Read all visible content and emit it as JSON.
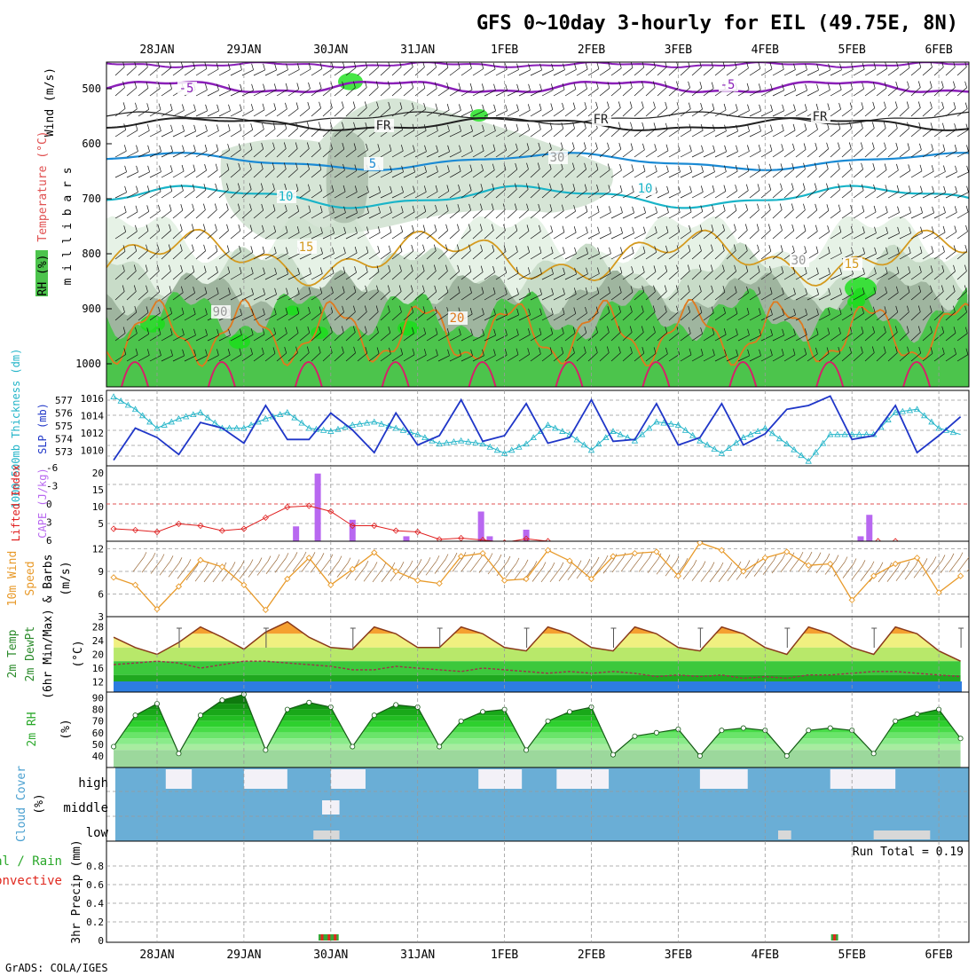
{
  "title": "GFS 0~10day 3-hourly for EIL (49.75E, 8N)",
  "credit": "GrADS: COLA/IGES",
  "dates": [
    "28JAN",
    "29JAN",
    "30JAN",
    "31JAN",
    "1FEB",
    "2FEB",
    "3FEB",
    "4FEB",
    "5FEB",
    "6FEB"
  ],
  "colors": {
    "rh_light": "#e6f2e6",
    "rh_mid": "#c8dcc8",
    "rh_dark": "#9fb59f",
    "rh_green": "#4cc44c",
    "rh_bright": "#18e018",
    "sat": "#000000",
    "temp_m5": "#8a1fb8",
    "temp_fr": "#222222",
    "temp_5": "#1a8ad4",
    "temp_10": "#19b4c8",
    "temp_15": "#d49a1e",
    "temp_20": "#e07a1e",
    "temp_25": "#d81e6a",
    "slp": "#1f36c8",
    "thick": "#22b4c8",
    "cape": "#b868f0",
    "li": "#e02020",
    "wind": "#e89a2a",
    "temp_orange": "#f5a030",
    "temp_yellow": "#f0f080",
    "temp_lgreen": "#b8e86a",
    "temp_green": "#3cc83c",
    "temp_dgreen": "#1fa81f",
    "temp_blue": "#2d7de0",
    "cloud": "#6aaed6",
    "cloud_clear": "#f3f1f7",
    "precip_total": "#38a838",
    "precip_conv": "#e0281e"
  },
  "panels": {
    "upper": {
      "ylabel": "m i l l i b a r s",
      "legend_wind": "Wind (m/s)",
      "legend_temp": "Temperature (°C)",
      "legend_rh": "RH (%)",
      "levels": [
        "500",
        "600",
        "700",
        "800",
        "900",
        "1000"
      ],
      "contour_labels": [
        "-5",
        "-5",
        "FR",
        "FR",
        "FR",
        "5",
        "10",
        "10",
        "15",
        "15",
        "20",
        "30",
        "30",
        "90"
      ]
    },
    "slp": {
      "left_label": "1000-500mb Thickness (dm)",
      "right_label": "SLP (mb)",
      "thick_ticks": [
        "577",
        "576",
        "575",
        "574",
        "573"
      ],
      "slp_ticks": [
        "1016",
        "1014",
        "1012",
        "1010"
      ]
    },
    "cape": {
      "left_label": "Lifted Index",
      "right_label": "CAPE (J/kg)",
      "li_ticks": [
        "-6",
        "-3",
        "0",
        "3",
        "6"
      ],
      "cape_ticks": [
        "20",
        "15",
        "10",
        "5"
      ]
    },
    "wind10": {
      "label1": "10m Wind",
      "label2": "Speed",
      "label3": "& Barbs",
      "unit": "(m/s)",
      "ticks": [
        "12",
        "9",
        "6",
        "3"
      ]
    },
    "temp2m": {
      "label1": "2m Temp",
      "label2": "2m DewPt",
      "label3": "(6hr Min/Max)",
      "unit": "(°C)",
      "ticks": [
        "28",
        "24",
        "20",
        "16",
        "12"
      ]
    },
    "rh2m": {
      "label": "2m RH",
      "unit": "(%)",
      "ticks": [
        "90",
        "80",
        "70",
        "60",
        "50",
        "40"
      ]
    },
    "cloud": {
      "label": "Cloud Cover",
      "unit": "(%)",
      "levels": [
        "high",
        "middle",
        "low"
      ]
    },
    "precip": {
      "label1": "tal / Rain",
      "label2": "Convective",
      "label3": "3hr Precip (mm)",
      "run_total": "Run Total = 0.19",
      "ticks": [
        "0.8",
        "0.6",
        "0.4",
        "0.2",
        "0"
      ]
    }
  },
  "chart_data": [
    {
      "type": "line",
      "title": "SLP (mb)",
      "x_days": [
        -0.5,
        -0.25,
        0,
        0.25,
        0.5,
        0.75,
        1,
        1.25,
        1.5,
        1.75,
        2,
        2.25,
        2.5,
        2.75,
        3,
        3.25,
        3.5,
        3.75,
        4,
        4.25,
        4.5,
        4.75,
        5,
        5.25,
        5.5,
        5.75,
        6,
        6.25,
        6.5,
        6.75,
        7,
        7.25,
        7.5,
        7.75,
        8,
        8.25,
        8.5,
        8.75,
        9,
        9.25
      ],
      "values": [
        1009.6,
        1013,
        1012,
        1010.2,
        1013.6,
        1013,
        1011.4,
        1015.4,
        1011.8,
        1011.8,
        1014.6,
        1012.8,
        1010.4,
        1014.6,
        1011.2,
        1012.2,
        1016,
        1011.6,
        1012.2,
        1015.6,
        1011.4,
        1012,
        1016,
        1011.6,
        1011.8,
        1015.6,
        1011.2,
        1012,
        1015.6,
        1011.2,
        1012.4,
        1015,
        1015.4,
        1016.4,
        1011.8,
        1012.2,
        1015.4,
        1010.4,
        1012.2,
        1014.2
      ],
      "ylim": [
        1009,
        1017
      ]
    },
    {
      "type": "line",
      "title": "1000-500mb Thickness (dm)",
      "x_days": [
        -0.5,
        -0.25,
        0,
        0.25,
        0.5,
        0.75,
        1,
        1.25,
        1.5,
        1.75,
        2,
        2.25,
        2.5,
        2.75,
        3,
        3.25,
        3.5,
        3.75,
        4,
        4.25,
        4.5,
        4.75,
        5,
        5.25,
        5.5,
        5.75,
        6,
        6.25,
        6.5,
        6.75,
        7,
        7.25,
        7.5,
        7.75,
        8,
        8.25,
        8.5,
        8.75,
        9,
        9.25
      ],
      "values": [
        577.0,
        576.2,
        575.0,
        575.6,
        576.0,
        575.0,
        575.0,
        575.6,
        576.0,
        575.0,
        574.8,
        575.2,
        575.4,
        575.0,
        574.6,
        574.0,
        574.2,
        574.0,
        573.4,
        574.0,
        575.2,
        574.6,
        573.6,
        574.8,
        574.2,
        575.4,
        575.2,
        574.2,
        573.4,
        574.4,
        575.0,
        574.0,
        572.9,
        574.6,
        574.6,
        574.6,
        576.0,
        576.2,
        575.0,
        574.6
      ],
      "ylim": [
        572.6,
        577.4
      ]
    },
    {
      "type": "bar",
      "title": "CAPE (J/kg)",
      "x_days": [
        1.6,
        1.85,
        2.25,
        2.87,
        3.73,
        3.83,
        4.25,
        8.1,
        8.2
      ],
      "values": [
        4.5,
        20.5,
        6.5,
        1.5,
        9,
        1.5,
        3.5,
        1.5,
        8
      ],
      "ylim": [
        1,
        21
      ]
    },
    {
      "type": "line",
      "title": "Lifted Index",
      "x_days": [
        -0.5,
        -0.25,
        0,
        0.25,
        0.5,
        0.75,
        1,
        1.25,
        1.5,
        1.75,
        2,
        2.25,
        2.5,
        2.75,
        3,
        3.25,
        3.5,
        3.75,
        4,
        4.25,
        4.5,
        8.3,
        8.5
      ],
      "values": [
        4,
        4.2,
        4.5,
        3.2,
        3.5,
        4.3,
        4,
        2.2,
        0.5,
        0.3,
        1.2,
        3.5,
        3.5,
        4.3,
        4.5,
        5.7,
        5.5,
        5.8,
        6.2,
        5.6,
        6,
        6,
        6
      ],
      "ylim": [
        6,
        -6
      ]
    },
    {
      "type": "line",
      "title": "10m Wind Speed (m/s)",
      "x_days": [
        -0.5,
        -0.25,
        0,
        0.25,
        0.5,
        0.75,
        1,
        1.25,
        1.5,
        1.75,
        2,
        2.25,
        2.5,
        2.75,
        3,
        3.25,
        3.5,
        3.75,
        4,
        4.25,
        4.5,
        4.75,
        5,
        5.25,
        5.5,
        5.75,
        6,
        6.25,
        6.5,
        6.75,
        7,
        7.25,
        7.5,
        7.75,
        8,
        8.25,
        8.5,
        8.75,
        9,
        9.25
      ],
      "values": [
        8.2,
        7.2,
        4.0,
        7.0,
        10.5,
        9.6,
        7.2,
        3.9,
        8.0,
        10.8,
        7.2,
        9.3,
        11.5,
        9.0,
        7.8,
        7.4,
        11.0,
        11.4,
        7.8,
        8.0,
        11.8,
        10.4,
        8.0,
        11.0,
        11.4,
        11.6,
        8.4,
        12.8,
        11.8,
        9.0,
        10.8,
        11.6,
        9.8,
        10.0,
        5.2,
        8.4,
        10.0,
        10.8,
        6.2,
        8.4
      ],
      "ylim": [
        3,
        13
      ]
    },
    {
      "type": "area",
      "title": "2m Temp (°C)",
      "x_days": [
        -0.5,
        -0.25,
        0,
        0.25,
        0.5,
        0.75,
        1,
        1.25,
        1.5,
        1.75,
        2,
        2.25,
        2.5,
        2.75,
        3,
        3.25,
        3.5,
        3.75,
        4,
        4.25,
        4.5,
        4.75,
        5,
        5.25,
        5.5,
        5.75,
        6,
        6.25,
        6.5,
        6.75,
        7,
        7.25,
        7.5,
        7.75,
        8,
        8.25,
        8.5,
        8.75,
        9,
        9.25
      ],
      "values": [
        25,
        22,
        20,
        23.5,
        28,
        25,
        21.5,
        26.5,
        29.5,
        25,
        22,
        21.5,
        28,
        26,
        22,
        22,
        28,
        26,
        22,
        21,
        28,
        26,
        22,
        21,
        28,
        26,
        22,
        21,
        28,
        26,
        22,
        20,
        28,
        26,
        22,
        20,
        28,
        26,
        21,
        18
      ],
      "dewpoint": [
        17,
        17.5,
        18,
        17.5,
        16,
        17,
        18,
        18,
        17.5,
        17,
        16.5,
        15.5,
        15.5,
        16.5,
        16,
        15.5,
        15,
        16,
        15.5,
        15,
        14.5,
        15,
        14.5,
        15,
        14.5,
        13.5,
        14,
        13.5,
        14,
        13,
        13.5,
        13,
        14,
        14,
        14.5,
        15,
        15,
        14.5,
        14,
        13.5
      ],
      "ylim": [
        9,
        31
      ]
    },
    {
      "type": "area",
      "title": "2m RH (%)",
      "x_days": [
        -0.5,
        -0.25,
        0,
        0.25,
        0.5,
        0.75,
        1,
        1.25,
        1.5,
        1.75,
        2,
        2.25,
        2.5,
        2.75,
        3,
        3.25,
        3.5,
        3.75,
        4,
        4.25,
        4.5,
        4.75,
        5,
        5.25,
        5.5,
        5.75,
        6,
        6.25,
        6.5,
        6.75,
        7,
        7.25,
        7.5,
        7.75,
        8,
        8.25,
        8.5,
        8.75,
        9,
        9.25
      ],
      "values": [
        48,
        75,
        85,
        42,
        75,
        88,
        93,
        45,
        80,
        86,
        82,
        48,
        75,
        84,
        82,
        48,
        70,
        78,
        80,
        45,
        70,
        78,
        82,
        41,
        57,
        60,
        63,
        40,
        62,
        64,
        62,
        40,
        62,
        64,
        62,
        42,
        70,
        76,
        80,
        55
      ],
      "ylim": [
        30,
        95
      ]
    },
    {
      "type": "table",
      "title": "Cloud Cover (%)",
      "clear_sky_days_high": [
        [
          0.1,
          0.4
        ],
        [
          1.0,
          1.5
        ],
        [
          2.0,
          2.4
        ],
        [
          3.7,
          4.2
        ],
        [
          4.6,
          5.2
        ],
        [
          6.25,
          6.8
        ],
        [
          7.75,
          8.5
        ]
      ],
      "middle_cloud_days": [
        [
          1.9,
          2.1
        ]
      ],
      "low_cloud_days": [
        [
          1.8,
          2.1
        ],
        [
          7.15,
          7.3
        ],
        [
          8.25,
          8.9
        ]
      ]
    },
    {
      "type": "bar",
      "title": "3hr Precip (mm)",
      "x_days": [
        1.9,
        1.98,
        2.05,
        7.8
      ],
      "values": [
        0.03,
        0.03,
        0.03,
        0.03
      ],
      "ylim": [
        0,
        0.95
      ],
      "run_total": 0.19
    }
  ]
}
